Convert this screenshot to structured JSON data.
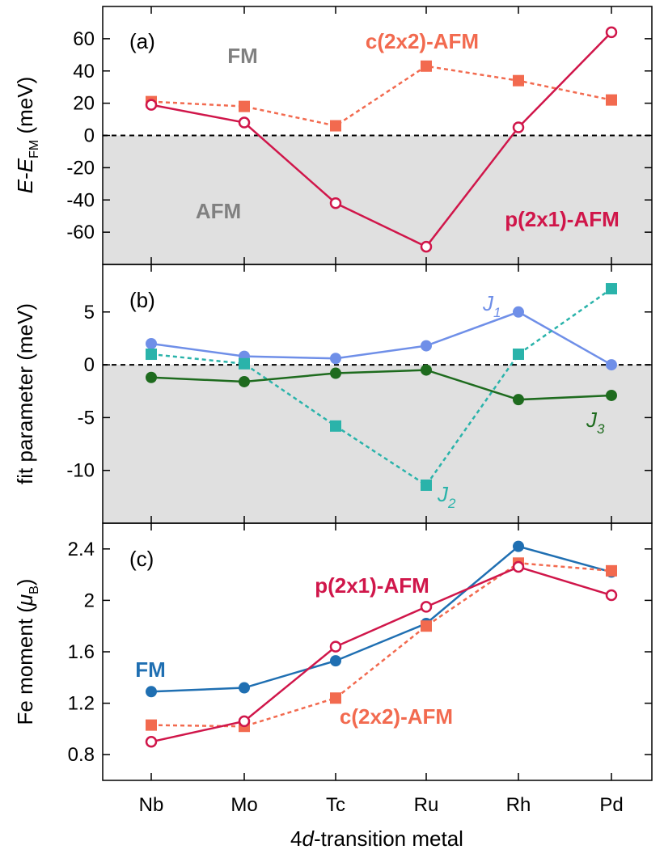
{
  "categories": [
    "Nb",
    "Mo",
    "Tc",
    "Ru",
    "Rh",
    "Pd"
  ],
  "xlabel_prefix": "4",
  "xlabel_italic": "d",
  "xlabel_suffix": "-transition metal",
  "colors": {
    "p_afm": "#d0164a",
    "c_afm": "#f26a4f",
    "fm_blue": "#1f6fb2",
    "j1": "#6f8fe8",
    "j2": "#2ab3aa",
    "j3": "#1e6b1e",
    "gray_text": "#808080",
    "shade": "#e0e0e0"
  },
  "chart_data": [
    {
      "type": "line",
      "panel_label": "(a)",
      "ylabel_parts": [
        "E",
        "-",
        "E",
        "FM",
        " (meV)"
      ],
      "ylim": [
        -80,
        80
      ],
      "yticks": [
        60,
        40,
        20,
        0,
        -20,
        -40,
        -60
      ],
      "yticklabels": [
        "60",
        "40",
        "20",
        "0",
        "-20",
        "-40",
        "-60"
      ],
      "shade_below_zero": true,
      "region_labels": {
        "above": "FM",
        "below": "AFM"
      },
      "series": [
        {
          "name": "c(2x2)-AFM",
          "marker": "square",
          "style": "dashed",
          "values": [
            21,
            18,
            6,
            43,
            34,
            22
          ]
        },
        {
          "name": "p(2x1)-AFM",
          "marker": "open-circle",
          "style": "solid",
          "values": [
            19,
            8,
            -42,
            -69,
            5,
            64
          ]
        }
      ]
    },
    {
      "type": "line",
      "panel_label": "(b)",
      "ylabel": "fit parameter (meV)",
      "ylim": [
        -15,
        9.5
      ],
      "yticks": [
        5,
        0,
        -5,
        -10
      ],
      "yticklabels": [
        "5",
        "0",
        "-5",
        "-10"
      ],
      "shade_below_zero": true,
      "series": [
        {
          "name": "J",
          "sub": "1",
          "marker": "circle",
          "style": "solid",
          "values": [
            2.0,
            0.8,
            0.6,
            1.8,
            5.0,
            0.0
          ]
        },
        {
          "name": "J",
          "sub": "2",
          "marker": "square",
          "style": "dashed",
          "values": [
            1.0,
            0.1,
            -5.8,
            -11.4,
            1.0,
            7.2
          ]
        },
        {
          "name": "J",
          "sub": "3",
          "marker": "circle",
          "style": "solid",
          "values": [
            -1.2,
            -1.6,
            -0.8,
            -0.5,
            -3.3,
            -2.9
          ]
        }
      ]
    },
    {
      "type": "line",
      "panel_label": "(c)",
      "ylabel_parts": [
        "Fe moment (",
        "μ",
        "B",
        ")"
      ],
      "ylim": [
        0.6,
        2.6
      ],
      "yticks": [
        2.4,
        2.0,
        1.6,
        1.2,
        0.8
      ],
      "yticklabels": [
        "2.4",
        "2",
        "1.6",
        "1.2",
        "0.8"
      ],
      "series": [
        {
          "name": "FM",
          "marker": "circle",
          "style": "solid",
          "values": [
            1.29,
            1.32,
            1.53,
            1.82,
            2.42,
            2.22
          ]
        },
        {
          "name": "c(2x2)-AFM",
          "marker": "square",
          "style": "dashed",
          "values": [
            1.03,
            1.02,
            1.24,
            1.8,
            2.29,
            2.23
          ]
        },
        {
          "name": "p(2x1)-AFM",
          "marker": "open-circle",
          "style": "solid",
          "values": [
            0.9,
            1.06,
            1.64,
            1.95,
            2.26,
            2.04
          ]
        }
      ]
    }
  ]
}
